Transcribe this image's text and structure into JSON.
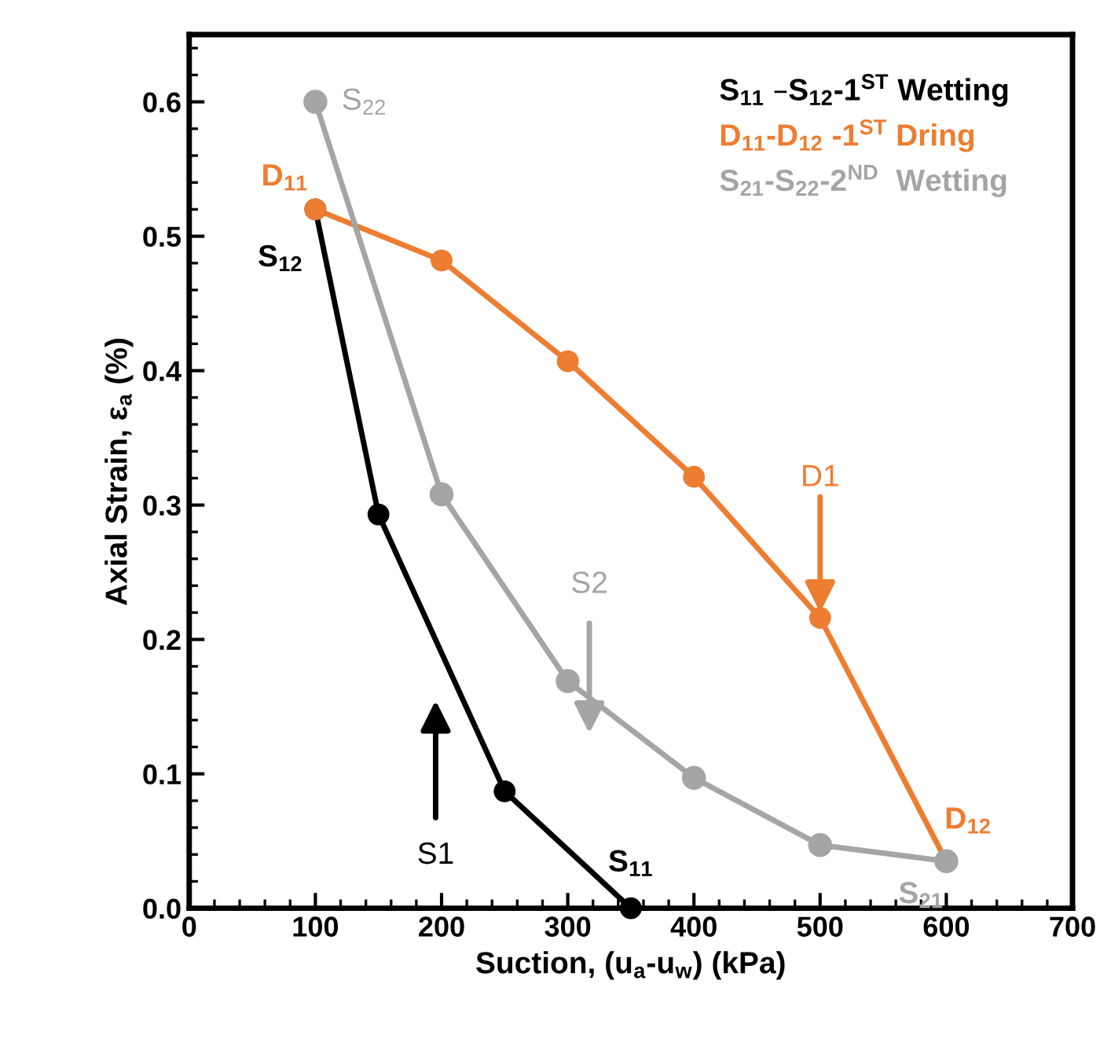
{
  "chart_data": {
    "type": "line",
    "xlabel": "Suction, (u$_{a}$-u$_{w}$) (kPa)",
    "ylabel": "Axial Strain, ε$_{a}$ (%)",
    "xlim": [
      0,
      700
    ],
    "xticks": [
      0,
      100,
      200,
      300,
      400,
      500,
      600,
      700
    ],
    "ylim": [
      0,
      0.65
    ],
    "yticks": [
      {
        "value": 0,
        "label": "0.0"
      },
      0.1,
      0.2,
      0.3,
      0.4,
      0.5,
      0.6
    ],
    "marker": "circle",
    "grid": false,
    "series": [
      {
        "name": "S$_{11}$ –S$_{12}$-1$^{ST}$ Wetting",
        "color": "#000000",
        "x": [
          350,
          250,
          150,
          100
        ],
        "values": [
          0.0,
          0.087,
          0.293,
          0.52
        ]
      },
      {
        "name": "D$_{11}$-D$_{12}$ -1$^{ST}$ Dring",
        "color": "#ed7d31",
        "x": [
          100,
          200,
          300,
          400,
          500,
          600
        ],
        "values": [
          0.52,
          0.482,
          0.407,
          0.321,
          0.216,
          0.035
        ]
      },
      {
        "name": "S$_{21}$-S$_{22}$-2$^{ND}$  Wetting",
        "color": "#a5a5a5",
        "x": [
          600,
          500,
          400,
          300,
          200,
          100
        ],
        "values": [
          0.035,
          0.047,
          0.097,
          0.169,
          0.308,
          0.6
        ]
      }
    ],
    "annotations": [
      {
        "text": "S$_{11}$",
        "x": 350,
        "y": 0.0
      },
      {
        "text": "S$_{12}$",
        "x": 100,
        "y": 0.52
      },
      {
        "text": "D$_{11}$",
        "x": 100,
        "y": 0.52
      },
      {
        "text": "D$_{12}$",
        "x": 600,
        "y": 0.035
      },
      {
        "text": "S$_{21}$",
        "x": 580,
        "y": 0.03
      },
      {
        "text": "S$_{22}$",
        "x": 100,
        "y": 0.6
      },
      "S1",
      "S2",
      {
        "text": "D1",
        "x": 500,
        "y": 0.22
      }
    ]
  }
}
